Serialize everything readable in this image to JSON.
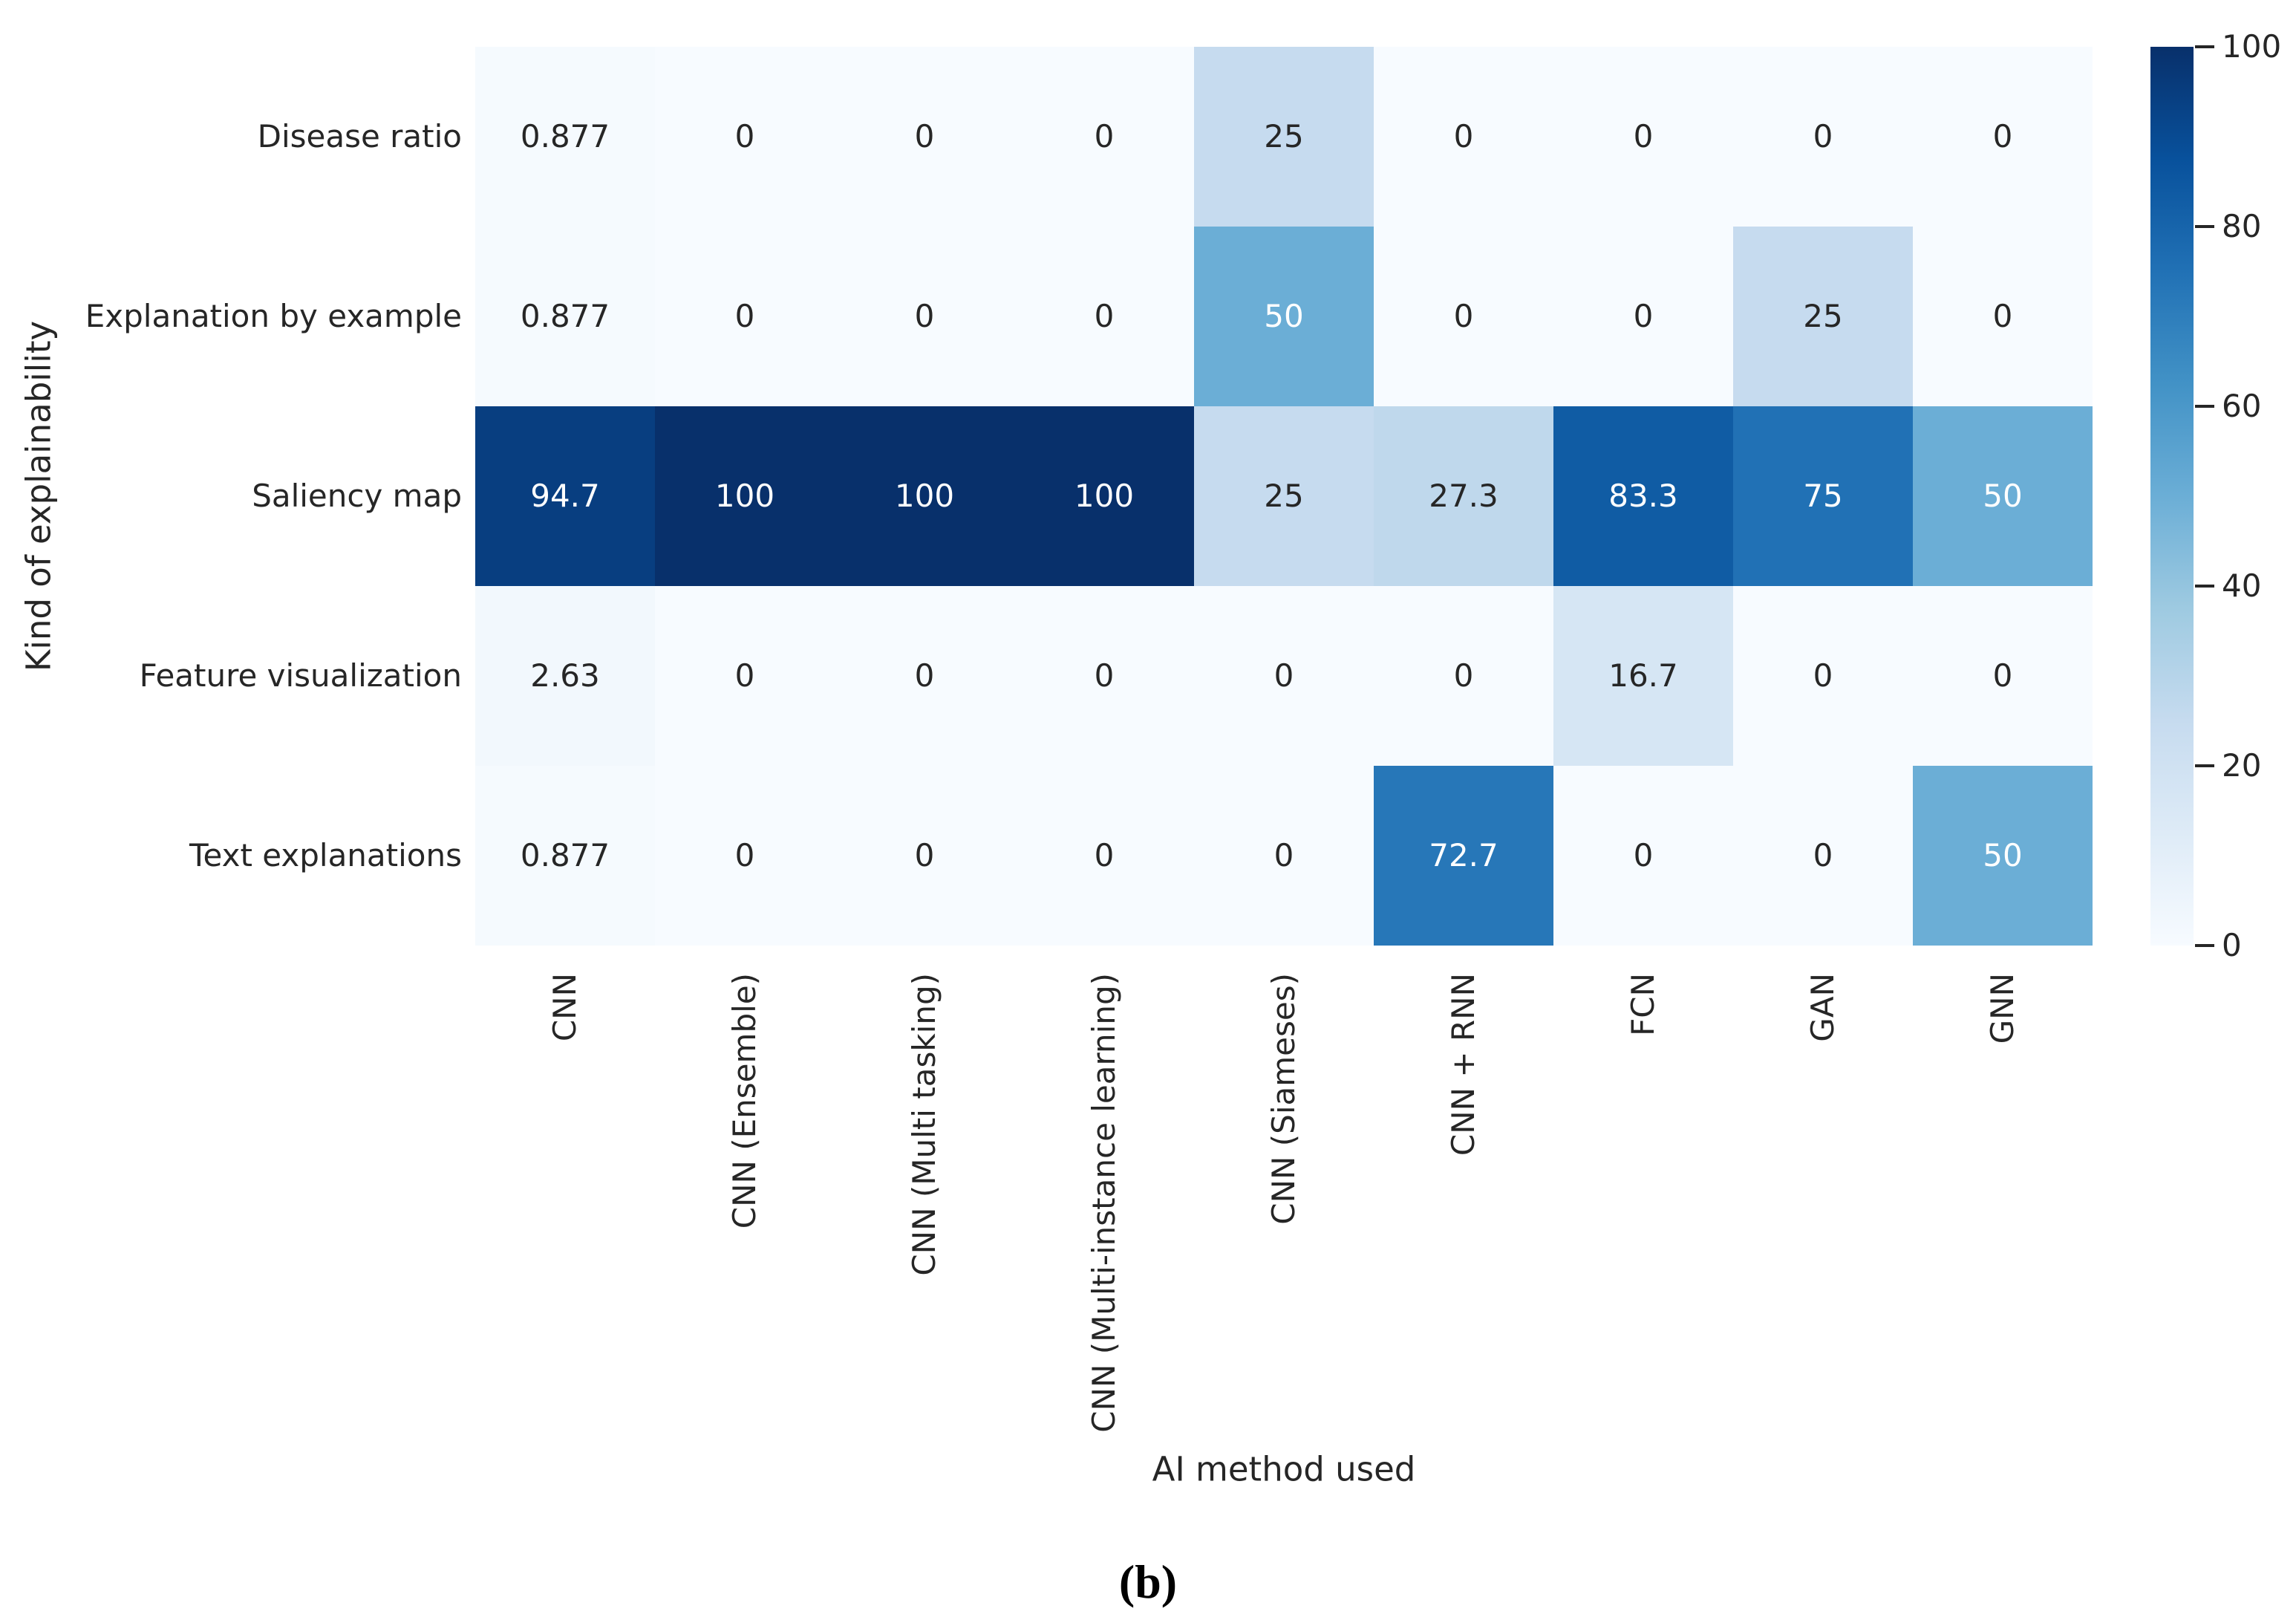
{
  "figure": {
    "caption": "(b)"
  },
  "chart_data": {
    "type": "heatmap",
    "title": "",
    "xlabel": "AI method used",
    "ylabel": "Kind of explainability",
    "x_categories": [
      "CNN",
      "CNN (Ensemble)",
      "CNN (Multi tasking)",
      "CNN (Multi-instance learning)",
      "CNN (Siameses)",
      "CNN + RNN",
      "FCN",
      "GAN",
      "GNN"
    ],
    "y_categories": [
      "Disease ratio",
      "Explanation by example",
      "Saliency map",
      "Feature visualization",
      "Text explanations"
    ],
    "values": [
      [
        0.877,
        0,
        0,
        0,
        25,
        0,
        0,
        0,
        0
      ],
      [
        0.877,
        0,
        0,
        0,
        50,
        0,
        0,
        25,
        0
      ],
      [
        94.7,
        100,
        100,
        100,
        25,
        27.3,
        83.3,
        75,
        50
      ],
      [
        2.63,
        0,
        0,
        0,
        0,
        0,
        16.7,
        0,
        0
      ],
      [
        0.877,
        0,
        0,
        0,
        0,
        72.7,
        0,
        0,
        50
      ]
    ],
    "cell_labels": [
      [
        "0.877",
        "0",
        "0",
        "0",
        "25",
        "0",
        "0",
        "0",
        "0"
      ],
      [
        "0.877",
        "0",
        "0",
        "0",
        "50",
        "0",
        "0",
        "25",
        "0"
      ],
      [
        "94.7",
        "100",
        "100",
        "100",
        "25",
        "27.3",
        "83.3",
        "75",
        "50"
      ],
      [
        "2.63",
        "0",
        "0",
        "0",
        "0",
        "0",
        "16.7",
        "0",
        "0"
      ],
      [
        "0.877",
        "0",
        "0",
        "0",
        "0",
        "72.7",
        "0",
        "0",
        "50"
      ]
    ],
    "value_range": [
      0,
      100
    ],
    "grid_lines": false,
    "colorbar": {
      "position": "right",
      "min": 0,
      "max": 100,
      "ticks": [
        "0",
        "20",
        "40",
        "60",
        "80",
        "100"
      ]
    },
    "colormap": {
      "name": "Blues",
      "stops": [
        "#f7fbff",
        "#deebf7",
        "#c6dbef",
        "#9ecae1",
        "#6baed6",
        "#4292c6",
        "#2171b5",
        "#08519c",
        "#08306b"
      ]
    },
    "annotation_colors": {
      "dark_text": "#262626",
      "light_text": "#ffffff"
    }
  }
}
